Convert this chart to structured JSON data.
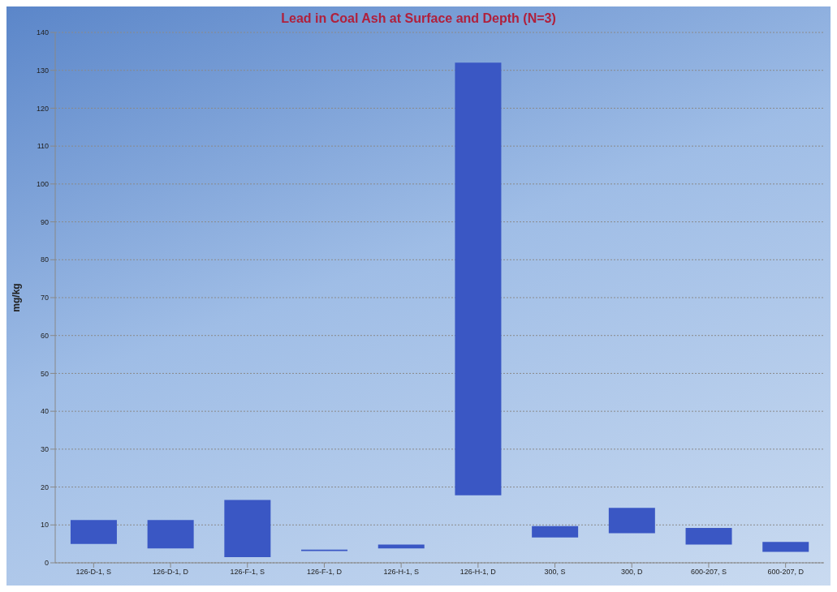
{
  "chart_data": {
    "type": "bar",
    "title": "Lead in Coal Ash at Surface and Depth (N=3)",
    "ylabel": "mg/kg",
    "categories": [
      "126-D-1, S",
      "126-D-1, D",
      "126-F-1, S",
      "126-F-1, D",
      "126-H-1, S",
      "126-H-1, D",
      "300, S",
      "300, D",
      "600-207, S",
      "600-207, D"
    ],
    "base": [
      5,
      3.8,
      1.5,
      3.1,
      3.8,
      17.8,
      6.7,
      7.8,
      4.8,
      2.9
    ],
    "values": [
      6.3,
      7.5,
      15.1,
      0.4,
      1,
      114.2,
      3,
      6.7,
      4.4,
      2.6
    ],
    "color": "#3a57c4",
    "ylim": [
      0,
      140
    ],
    "yticks": [
      0,
      10,
      20,
      30,
      40,
      50,
      60,
      70,
      80,
      90,
      100,
      110,
      120,
      130,
      140
    ],
    "grid": "y"
  }
}
